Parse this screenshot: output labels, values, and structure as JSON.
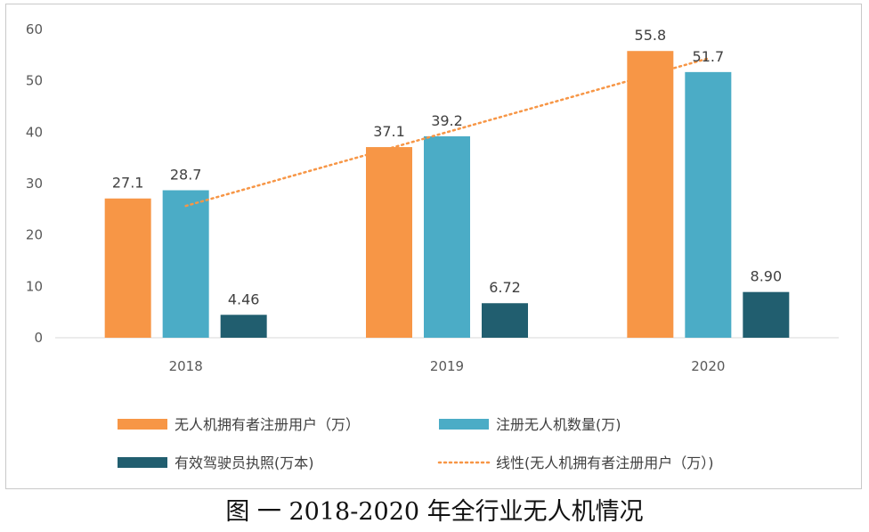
{
  "caption": "图 一 2018-2020 年全行业无人机情况",
  "colors": {
    "orange": "#F79646",
    "blue": "#4BACC6",
    "teal": "#215E6F",
    "trend": "#F79646"
  },
  "chart_data": {
    "type": "bar",
    "categories": [
      "2018",
      "2019",
      "2020"
    ],
    "ylim": [
      0,
      60
    ],
    "yticks": [
      0,
      10,
      20,
      30,
      40,
      50,
      60
    ],
    "grid": false,
    "legend_position": "bottom",
    "series": [
      {
        "name": "无人机拥有者注册用户（万）",
        "values": [
          27.1,
          37.1,
          55.8
        ],
        "labels": [
          "27.1",
          "37.1",
          "55.8"
        ],
        "color": "#F79646"
      },
      {
        "name": "注册无人机数量(万)",
        "values": [
          28.7,
          39.2,
          51.7
        ],
        "labels": [
          "28.7",
          "39.2",
          "51.7"
        ],
        "color": "#4BACC6"
      },
      {
        "name": "有效驾驶员执照(万本)",
        "values": [
          4.46,
          6.72,
          8.9
        ],
        "labels": [
          "4.46",
          "6.72",
          "8.90"
        ],
        "color": "#215E6F"
      }
    ],
    "trendline": {
      "name": "线性(无人机拥有者注册用户（万）)",
      "type": "linear",
      "of_series": 0,
      "style": "dotted"
    }
  }
}
